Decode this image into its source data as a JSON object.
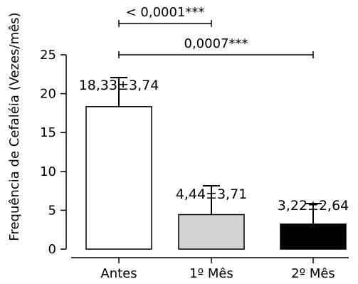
{
  "chart_data": {
    "type": "bar",
    "title": "",
    "xlabel": "",
    "ylabel": "Frequência de Cefaléia (Vezes/mês)",
    "ylim": [
      0,
      25
    ],
    "yticks": [
      0,
      5,
      10,
      15,
      20,
      25
    ],
    "grid": false,
    "legend": "none",
    "categories": [
      "Antes",
      "1º Mês",
      "2º Mês"
    ],
    "values": [
      18.33,
      4.44,
      3.22
    ],
    "errors": [
      3.74,
      3.71,
      2.64
    ],
    "value_labels": [
      "18,33±3,74",
      "4,44±3,71",
      "3,22±2,64"
    ],
    "bar_colors": [
      "#ffffff",
      "#d3d3d3",
      "#000000"
    ],
    "error_bar_display": "upper",
    "annotations": [
      {
        "label": "< 0,0001***",
        "from": "Antes",
        "to": "1º Mês"
      },
      {
        "label": "0,0007***",
        "from": "Antes",
        "to": "2º Mês"
      }
    ]
  }
}
